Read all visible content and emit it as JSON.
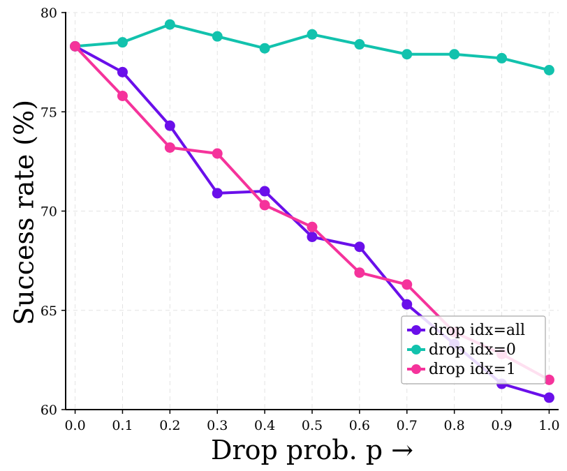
{
  "chart_data": {
    "type": "line",
    "xlabel": "Drop prob. p →",
    "ylabel": "Success rate (%)",
    "xlim": [
      -0.02,
      1.02
    ],
    "ylim": [
      60,
      80
    ],
    "xticks": [
      "0.0",
      "0.1",
      "0.2",
      "0.3",
      "0.4",
      "0.5",
      "0.6",
      "0.7",
      "0.8",
      "0.9",
      "1.0"
    ],
    "yticks": [
      "60",
      "65",
      "70",
      "75",
      "80"
    ],
    "grid": true,
    "legend_position": "bottom-right",
    "x": [
      0.0,
      0.1,
      0.2,
      0.3,
      0.4,
      0.5,
      0.6,
      0.7,
      0.8,
      0.9,
      1.0
    ],
    "series": [
      {
        "name": "drop idx=all",
        "color": "#6a0fea",
        "values": [
          78.3,
          77.0,
          74.3,
          70.9,
          71.0,
          68.7,
          68.2,
          65.3,
          63.3,
          61.3,
          60.6
        ]
      },
      {
        "name": "drop idx=0",
        "color": "#12c2ad",
        "values": [
          78.3,
          78.5,
          79.4,
          78.8,
          78.2,
          78.9,
          78.4,
          77.9,
          77.9,
          77.7,
          77.1
        ]
      },
      {
        "name": "drop idx=1",
        "color": "#f5339b",
        "values": [
          78.3,
          75.8,
          73.2,
          72.9,
          70.3,
          69.2,
          66.9,
          66.3,
          63.9,
          62.8,
          61.5
        ]
      }
    ]
  }
}
